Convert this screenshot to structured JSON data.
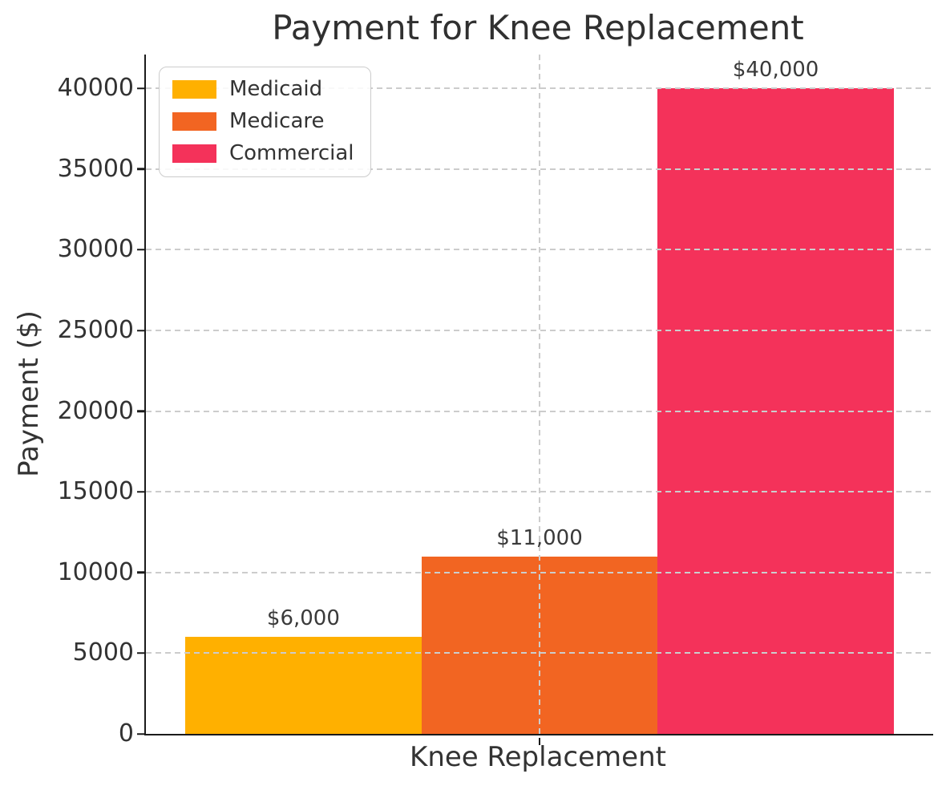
{
  "chart_data": {
    "type": "bar",
    "title": "Payment for Knee Replacement",
    "xlabel": "Knee Replacement",
    "ylabel": "Payment ($)",
    "categories": [
      "Knee Replacement"
    ],
    "series": [
      {
        "name": "Medicaid",
        "values": [
          6000
        ],
        "color": "#FFB000",
        "data_label": "$6,000"
      },
      {
        "name": "Medicare",
        "values": [
          11000
        ],
        "color": "#F26522",
        "data_label": "$11,000"
      },
      {
        "name": "Commercial",
        "values": [
          40000
        ],
        "color": "#F4325A",
        "data_label": "$40,000"
      }
    ],
    "ylim": [
      0,
      42100
    ],
    "yticks": [
      0,
      5000,
      10000,
      15000,
      20000,
      25000,
      30000,
      35000,
      40000
    ],
    "grid": true,
    "grid_style": "dashed",
    "legend_position": "upper left",
    "bar_centers": [
      0.2,
      0.5,
      0.8
    ],
    "bar_width_frac": 0.3
  },
  "colors": {
    "grid": "#cccccc",
    "axis": "#1b1b1b",
    "text": "#333333",
    "title": "#303030",
    "background": "#ffffff"
  }
}
